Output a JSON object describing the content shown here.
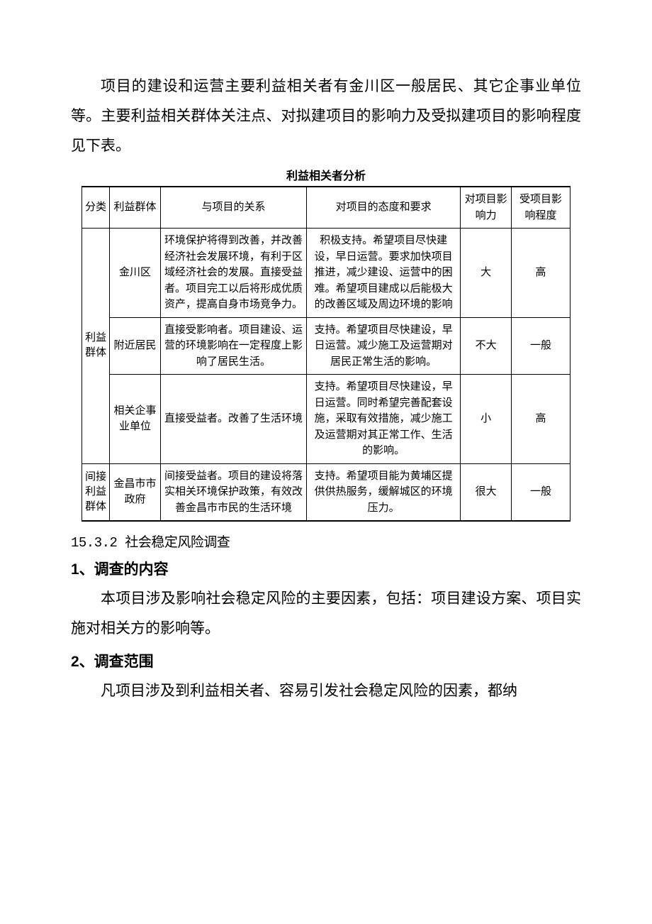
{
  "intro_para": "项目的建设和运营主要利益相关者有金川区一般居民、其它企事业单位等。主要利益相关群体关注点、对拟建项目的影响力及受拟建项目的影响程度见下表。",
  "table": {
    "title": "利益相关者分析",
    "headers": {
      "category": "分类",
      "group": "利益群体",
      "relation": "与项目的关系",
      "attitude": "对项目的态度和要求",
      "influence": "对项目影响力",
      "affected": "受项目影响程度"
    },
    "category1": "利益群体",
    "category2": "间接利益群体",
    "rows": [
      {
        "group": "金川区",
        "relation": "环境保护将得到改善，并改善经济社会发展环境，有利于区域经济社会的发展。直接受益者。项目完工以后将形成优质资产，提高自身市场竞争力。",
        "attitude": "积极支持。希望项目尽快建设，早日运营。要求加快项目推进，减少建设、运营中的困难。希望项目建成以后能极大的改善区域及周边环境的影响",
        "influence": "大",
        "affected": "高"
      },
      {
        "group": "附近居民",
        "relation": "直接受影响者。项目建设、运营的环境影响在一定程度上影响了居民生活。",
        "attitude": "支持。希望项目尽快建设，早日运营。减少施工及运营期对居民正常生活的影响。",
        "influence": "不大",
        "affected": "一般"
      },
      {
        "group": "相关企事业单位",
        "relation": "直接受益者。改善了生活环境",
        "attitude": "支持。希望项目尽快建设，早日运营。同时希望完善配套设施，采取有效措施，减少施工及运营期对其正常工作、生活的影响。",
        "influence": "小",
        "affected": "高"
      },
      {
        "group": "金昌市市政府",
        "relation": "间接受益者。项目的建设将落实相关环境保护政策，有效改善金昌市市民的生活环境",
        "attitude": "支持。希望项目能为黄埔区提供供热服务，缓解城区的环境压力。",
        "influence": "很大",
        "affected": "一般"
      }
    ]
  },
  "section_num": "15.3.2 社会稳定风险调查",
  "heading1": "1、调查的内容",
  "para1": "本项目涉及影响社会稳定风险的主要因素，包括：项目建设方案、项目实施对相关方的影响等。",
  "heading2": "2、调查范围",
  "para2": "凡项目涉及到利益相关者、容易引发社会稳定风险的因素，都纳"
}
